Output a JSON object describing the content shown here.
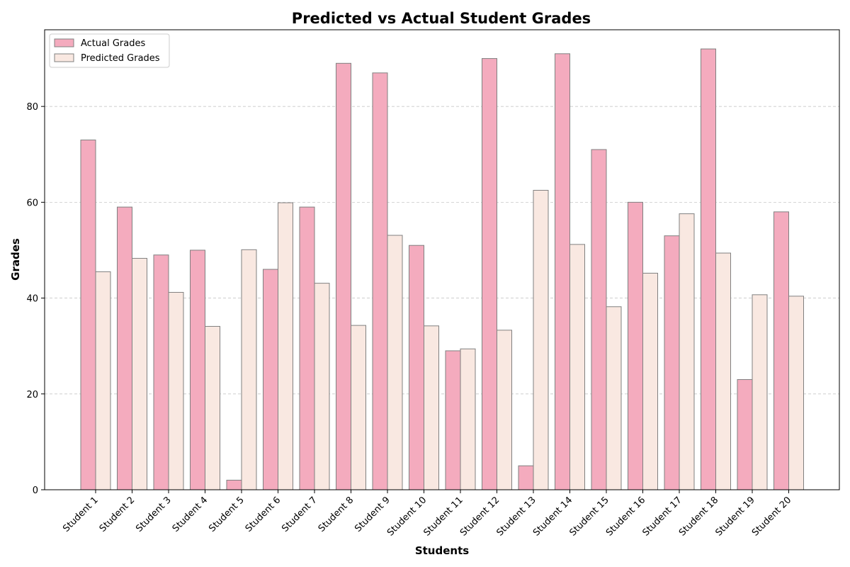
{
  "chart_data": {
    "type": "bar",
    "title": "Predicted vs Actual Student Grades",
    "xlabel": "Students",
    "ylabel": "Grades",
    "ylim": [
      0,
      96
    ],
    "yticks": [
      0,
      20,
      40,
      60,
      80
    ],
    "grid": "y-dashed",
    "legend_position": "top-left",
    "categories": [
      "Student 1",
      "Student 2",
      "Student 3",
      "Student 4",
      "Student 5",
      "Student 6",
      "Student 7",
      "Student 8",
      "Student 9",
      "Student 10",
      "Student 11",
      "Student 12",
      "Student 13",
      "Student 14",
      "Student 15",
      "Student 16",
      "Student 17",
      "Student 18",
      "Student 19",
      "Student 20"
    ],
    "series": [
      {
        "name": "Actual Grades",
        "color": "#f4abbe",
        "values": [
          73,
          59,
          49,
          50,
          2,
          46,
          59,
          89,
          87,
          51,
          29,
          90,
          5,
          91,
          71,
          60,
          53,
          92,
          23,
          58
        ]
      },
      {
        "name": "Predicted Grades",
        "color": "#f9e8e1",
        "values": [
          45.5,
          48.3,
          41.2,
          34.1,
          50.1,
          59.9,
          43.1,
          34.3,
          53.1,
          34.2,
          29.4,
          33.3,
          62.5,
          51.2,
          38.2,
          45.2,
          57.6,
          49.4,
          40.7,
          40.4
        ]
      }
    ],
    "edge_color": "#808080"
  }
}
